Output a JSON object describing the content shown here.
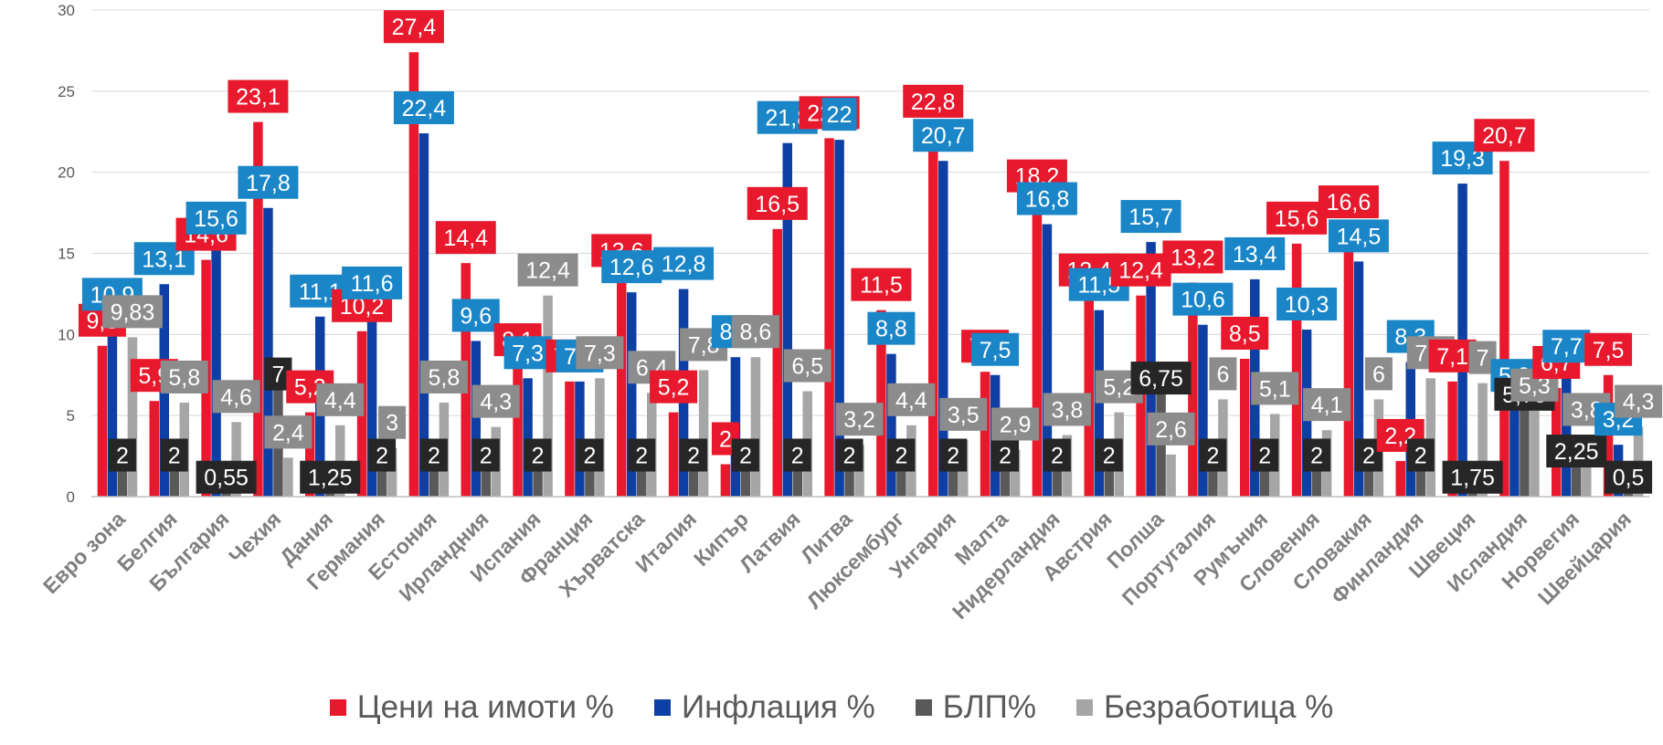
{
  "chart_data": {
    "type": "bar",
    "categories": [
      "Евро зона",
      "Белгия",
      "България",
      "Чехия",
      "Дания",
      "Германия",
      "Естония",
      "Ирландния",
      "Испания",
      "Франция",
      "Хърватска",
      "Италия",
      "Кипър",
      "Латвия",
      "Литва",
      "Люксембург",
      "Унгария",
      "Малта",
      "Нидерландия",
      "Австрия",
      "Полша",
      "Португалия",
      "Румъния",
      "Словения",
      "Словакия",
      "Финландия",
      "Швеция",
      "Исландия",
      "Норвегия",
      "Швейцария"
    ],
    "series": [
      {
        "name": "Цени на имоти %",
        "color": "#e8192c",
        "values": [
          9.3,
          5.9,
          14.6,
          23.1,
          5.2,
          10.2,
          27.4,
          14.4,
          8.1,
          7.1,
          13.6,
          5.2,
          2,
          16.5,
          22.1,
          11.5,
          22.8,
          7.7,
          18.2,
          12.4,
          12.4,
          13.2,
          8.5,
          15.6,
          16.6,
          2.2,
          7.1,
          20.7,
          6.7,
          7.5
        ],
        "labels": [
          "9,3",
          "5,9",
          "14,6",
          "23,1",
          "5,2",
          "10,2",
          "27,4",
          "14,4",
          "8,1",
          "7,1",
          "13,6",
          "5,2",
          "2",
          "16,5",
          "22,1",
          "11,5",
          "22,8",
          "7,7",
          "18,2",
          "12,4",
          "12,4",
          "13,2",
          "8,5",
          "15,6",
          "16,6",
          "2,2",
          "7,1",
          "20,7",
          "6,7",
          "7,5"
        ]
      },
      {
        "name": "Инфлация %",
        "color": "#0e3fa5",
        "values": [
          10.9,
          13.1,
          15.6,
          17.8,
          11.1,
          11.6,
          22.4,
          9.6,
          7.3,
          7.1,
          12.6,
          12.8,
          8.6,
          21.8,
          22,
          8.8,
          20.7,
          7.5,
          16.8,
          11.5,
          15.7,
          10.6,
          13.4,
          10.3,
          14.5,
          8.3,
          19.3,
          5.9,
          7.7,
          3.2
        ],
        "labels": [
          "10,9",
          "13,1",
          "15,6",
          "17,8",
          "11,1",
          "11,6",
          "22,4",
          "9,6",
          "7,3",
          "7,1",
          "12,6",
          "12,8",
          "8,6",
          "21,8",
          "22",
          "8,8",
          "20,7",
          "7,5",
          "16,8",
          "11,5",
          "15,7",
          "10,6",
          "13,4",
          "10,3",
          "14,5",
          "8,3",
          "19,3",
          "5,9",
          "7,7",
          "3,2"
        ]
      },
      {
        "name": "БЛП%",
        "color": "#595959",
        "values": [
          2,
          2,
          0.55,
          7,
          1.25,
          2,
          2,
          2,
          2,
          2,
          2,
          2,
          2,
          2,
          2,
          2,
          2,
          2,
          2,
          2,
          6.75,
          2,
          2,
          2,
          2,
          2,
          1.75,
          5.75,
          2.25,
          0.5
        ],
        "labels": [
          "2",
          "2",
          "0,55",
          "7",
          "1,25",
          "2",
          "2",
          "2",
          "2",
          "2",
          "2",
          "2",
          "2",
          "2",
          "2",
          "2",
          "2",
          "2",
          "2",
          "2",
          "6,75",
          "2",
          "2",
          "2",
          "2",
          "2",
          "1,75",
          "5,75",
          "2,25",
          "0,5"
        ]
      },
      {
        "name": "Безработица %",
        "color": "#a6a6a6",
        "values": [
          9.83,
          5.8,
          4.6,
          2.4,
          4.4,
          3,
          5.8,
          4.3,
          12.4,
          7.3,
          6.4,
          7.8,
          8.6,
          6.5,
          3.2,
          4.4,
          3.5,
          2.9,
          3.8,
          5.2,
          2.6,
          6,
          5.1,
          4.1,
          6,
          7.3,
          7,
          5.3,
          3.8,
          4.3
        ],
        "labels": [
          "9,83",
          "5,8",
          "4,6",
          "2,4",
          "4,4",
          "3",
          "5,8",
          "4,3",
          "12,4",
          "7,3",
          "6,4",
          "7,8",
          "8,6",
          "6,5",
          "3,2",
          "4,4",
          "3,5",
          "2,9",
          "3,8",
          "5,2",
          "2,6",
          "6",
          "5,1",
          "4,1",
          "6",
          "7,3",
          "7",
          "5,3",
          "3,8",
          "4,3"
        ]
      }
    ],
    "ylim": [
      0,
      30
    ],
    "yticks": [
      "0",
      "5",
      "10",
      "15",
      "20",
      "25",
      "30"
    ],
    "grid": true,
    "legend": "bottom"
  }
}
